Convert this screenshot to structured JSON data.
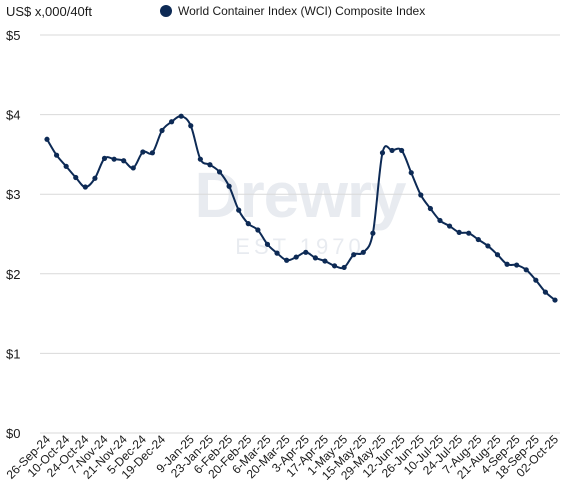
{
  "watermark": {
    "brand": "Drewry",
    "est": "EST 1970"
  },
  "chart_data": {
    "type": "line",
    "ylabel": "US$ x,000/40ft",
    "ylim": [
      0,
      5
    ],
    "yticks": [
      "$0",
      "$1",
      "$2",
      "$3",
      "$4",
      "$5"
    ],
    "ytick_values": [
      0,
      1,
      2,
      3,
      4,
      5
    ],
    "grid": true,
    "legend_placement": "top",
    "series": [
      {
        "name": "World Container Index (WCI) Composite Index",
        "color": "#0d2a55",
        "x": [
          "26-Sep-24",
          "03-Oct-24",
          "10-Oct-24",
          "17-Oct-24",
          "24-Oct-24",
          "31-Oct-24",
          "7-Nov-24",
          "14-Nov-24",
          "21-Nov-24",
          "28-Nov-24",
          "5-Dec-24",
          "12-Dec-24",
          "19-Dec-24",
          "26-Dec-24",
          "2-Jan-25",
          "9-Jan-25",
          "16-Jan-25",
          "23-Jan-25",
          "30-Jan-25",
          "6-Feb-25",
          "13-Feb-25",
          "20-Feb-25",
          "27-Feb-25",
          "6-Mar-25",
          "13-Mar-25",
          "20-Mar-25",
          "27-Mar-25",
          "3-Apr-25",
          "10-Apr-25",
          "17-Apr-25",
          "24-Apr-25",
          "1-May-25",
          "8-May-25",
          "15-May-25",
          "22-May-25",
          "29-May-25",
          "5-Jun-25",
          "12-Jun-25",
          "19-Jun-25",
          "26-Jun-25",
          "3-Jul-25",
          "10-Jul-25",
          "17-Jul-25",
          "24-Jul-25",
          "31-Jul-25",
          "7-Aug-25",
          "14-Aug-25",
          "21-Aug-25",
          "28-Aug-25",
          "4-Sep-25",
          "11-Sep-25",
          "18-Sep-25",
          "25-Sep-25",
          "02-Oct-25"
        ],
        "values": [
          3.69,
          3.49,
          3.35,
          3.21,
          3.09,
          3.2,
          3.45,
          3.44,
          3.42,
          3.33,
          3.53,
          3.52,
          3.8,
          3.91,
          3.98,
          3.86,
          3.44,
          3.37,
          3.28,
          3.1,
          2.8,
          2.63,
          2.55,
          2.37,
          2.26,
          2.17,
          2.21,
          2.27,
          2.2,
          2.16,
          2.1,
          2.08,
          2.24,
          2.27,
          2.51,
          3.52,
          3.55,
          3.55,
          3.27,
          2.99,
          2.82,
          2.67,
          2.6,
          2.52,
          2.51,
          2.43,
          2.35,
          2.24,
          2.12,
          2.11,
          2.05,
          1.92,
          1.77,
          1.67
        ]
      }
    ],
    "xtick_labels": [
      "26-Sep-24",
      "10-Oct-24",
      "24-Oct-24",
      "7-Nov-24",
      "21-Nov-24",
      "5-Dec-24",
      "19-Dec-24",
      "9-Jan-25",
      "23-Jan-25",
      "6-Feb-25",
      "20-Feb-25",
      "6-Mar-25",
      "20-Mar-25",
      "3-Apr-25",
      "17-Apr-25",
      "1-May-25",
      "15-May-25",
      "29-May-25",
      "12-Jun-25",
      "26-Jun-25",
      "10-Jul-25",
      "24-Jul-25",
      "7-Aug-25",
      "21-Aug-25",
      "4-Sep-25",
      "18-Sep-25",
      "02-Oct-25"
    ]
  }
}
